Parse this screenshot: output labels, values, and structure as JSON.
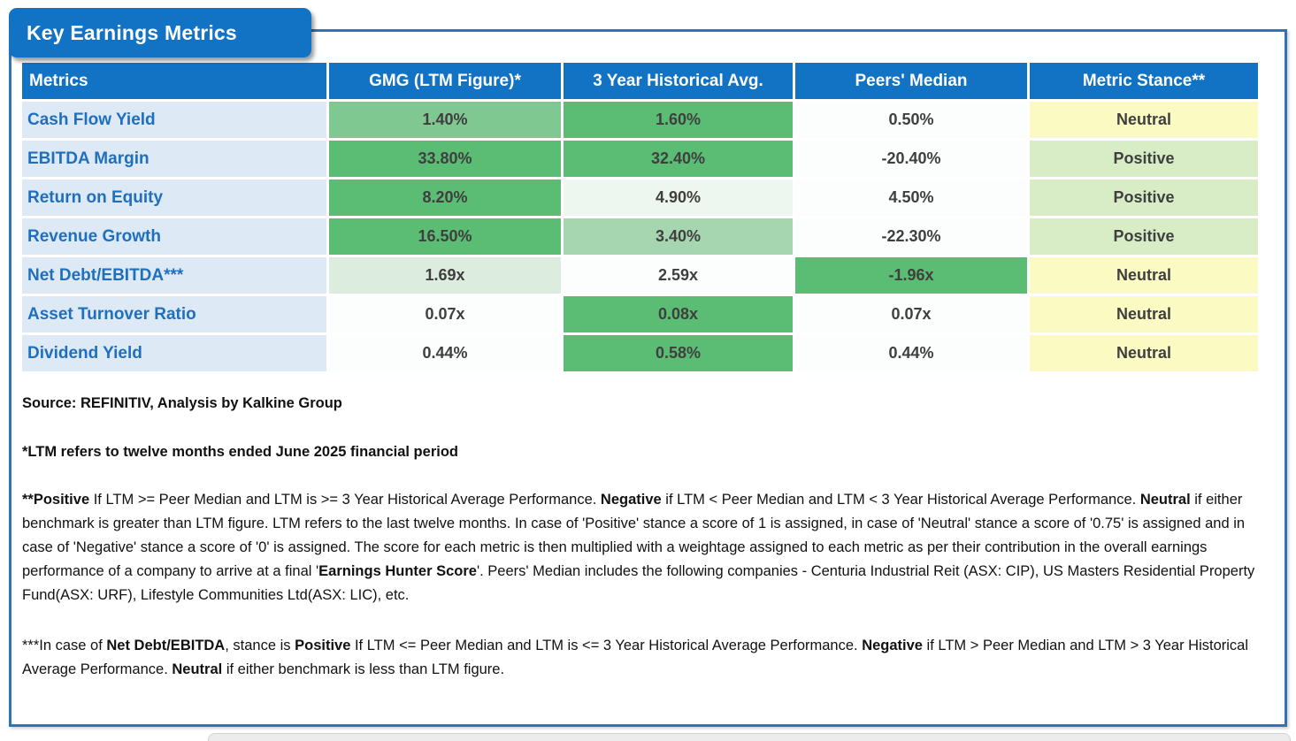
{
  "title": "Key Earnings Metrics",
  "colors": {
    "header_blue": "#1272C4",
    "panel_border_blue": "#2E75B6",
    "metric_column_blue": "#DDEAF6",
    "metric_text_blue": "#1F6FBE",
    "heat_green_strong": "#5BBC73",
    "heat_green_medium": "#80C892",
    "heat_green_light": "#A6D6B0",
    "heat_green_faint": "#DCEDE0",
    "heat_green_trace": "#EEF6F0",
    "cell_white": "#FCFDFD",
    "stance_positive_green": "#D8ECC6",
    "stance_neutral_yellow": "#FBFAC3",
    "value_text": "#3F3F3F"
  },
  "table": {
    "headers": [
      "Metrics",
      "GMG (LTM Figure)*",
      "3 Year Historical Avg.",
      "Peers' Median",
      "Metric Stance**"
    ],
    "rows": [
      {
        "metric": "Cash Flow Yield",
        "cells": [
          {
            "value": "1.40%",
            "level": "g2"
          },
          {
            "value": "1.60%",
            "level": "g3"
          },
          {
            "value": "0.50%",
            "level": "w"
          }
        ],
        "stance": "Neutral",
        "stance_level": "neu"
      },
      {
        "metric": "EBITDA Margin",
        "cells": [
          {
            "value": "33.80%",
            "level": "g3"
          },
          {
            "value": "32.40%",
            "level": "g3"
          },
          {
            "value": "-20.40%",
            "level": "w"
          }
        ],
        "stance": "Positive",
        "stance_level": "pos"
      },
      {
        "metric": "Return on Equity",
        "cells": [
          {
            "value": "8.20%",
            "level": "g3"
          },
          {
            "value": "4.90%",
            "level": "gx"
          },
          {
            "value": "4.50%",
            "level": "w"
          }
        ],
        "stance": "Positive",
        "stance_level": "pos"
      },
      {
        "metric": "Revenue Growth",
        "cells": [
          {
            "value": "16.50%",
            "level": "g3"
          },
          {
            "value": "3.40%",
            "level": "g1"
          },
          {
            "value": "-22.30%",
            "level": "w"
          }
        ],
        "stance": "Positive",
        "stance_level": "pos"
      },
      {
        "metric": "Net Debt/EBITDA***",
        "cells": [
          {
            "value": "1.69x",
            "level": "g0"
          },
          {
            "value": "2.59x",
            "level": "w"
          },
          {
            "value": "-1.96x",
            "level": "g3"
          }
        ],
        "stance": "Neutral",
        "stance_level": "neu"
      },
      {
        "metric": "Asset Turnover Ratio",
        "cells": [
          {
            "value": "0.07x",
            "level": "w"
          },
          {
            "value": "0.08x",
            "level": "g3"
          },
          {
            "value": "0.07x",
            "level": "w"
          }
        ],
        "stance": "Neutral",
        "stance_level": "neu"
      },
      {
        "metric": "Dividend Yield",
        "cells": [
          {
            "value": "0.44%",
            "level": "w"
          },
          {
            "value": "0.58%",
            "level": "g3"
          },
          {
            "value": "0.44%",
            "level": "w"
          }
        ],
        "stance": "Neutral",
        "stance_level": "neu"
      }
    ]
  },
  "footnotes": {
    "source": "Source: REFINITIV, Analysis by Kalkine Group",
    "ltm_note": "*LTM refers to twelve months ended June 2025 financial period",
    "stance_note": {
      "segments": [
        {
          "t": "**Positive",
          "b": true
        },
        {
          "t": " If LTM >= Peer Median and LTM is >= 3 Year Historical Average Performance. ",
          "b": false
        },
        {
          "t": "Negative",
          "b": true
        },
        {
          "t": " if LTM < Peer Median and LTM < 3 Year Historical Average Performance. ",
          "b": false
        },
        {
          "t": "Neutral",
          "b": true
        },
        {
          "t": " if either benchmark is greater than LTM figure. LTM refers to the last twelve months. In case of 'Positive' stance a score of 1 is assigned, in case of 'Neutral' stance a score of '0.75' is assigned and in case of 'Negative' stance a score of '0' is assigned. The score for each metric is then multiplied with a weightage assigned to each metric as per their contribution in the overall earnings performance of a company to arrive at a final '",
          "b": false
        },
        {
          "t": "Earnings Hunter Score",
          "b": true
        },
        {
          "t": "'. Peers' Median includes the following companies -  Centuria Industrial Reit (ASX: CIP), US Masters Residential Property Fund(ASX: URF), Lifestyle Communities Ltd(ASX: LIC), etc.",
          "b": false
        }
      ]
    },
    "netdebt_note": {
      "segments": [
        {
          "t": "***In case of ",
          "b": false
        },
        {
          "t": "Net Debt/EBITDA",
          "b": true
        },
        {
          "t": ", stance is ",
          "b": false
        },
        {
          "t": "Positive",
          "b": true
        },
        {
          "t": " If LTM <= Peer Median and LTM is <= 3 Year Historical Average Performance. ",
          "b": false
        },
        {
          "t": "Negative",
          "b": true
        },
        {
          "t": " if LTM > Peer Median and LTM > 3 Year Historical Average Performance. ",
          "b": false
        },
        {
          "t": "Neutral",
          "b": true
        },
        {
          "t": " if either benchmark is less than LTM figure.",
          "b": false
        }
      ]
    }
  }
}
